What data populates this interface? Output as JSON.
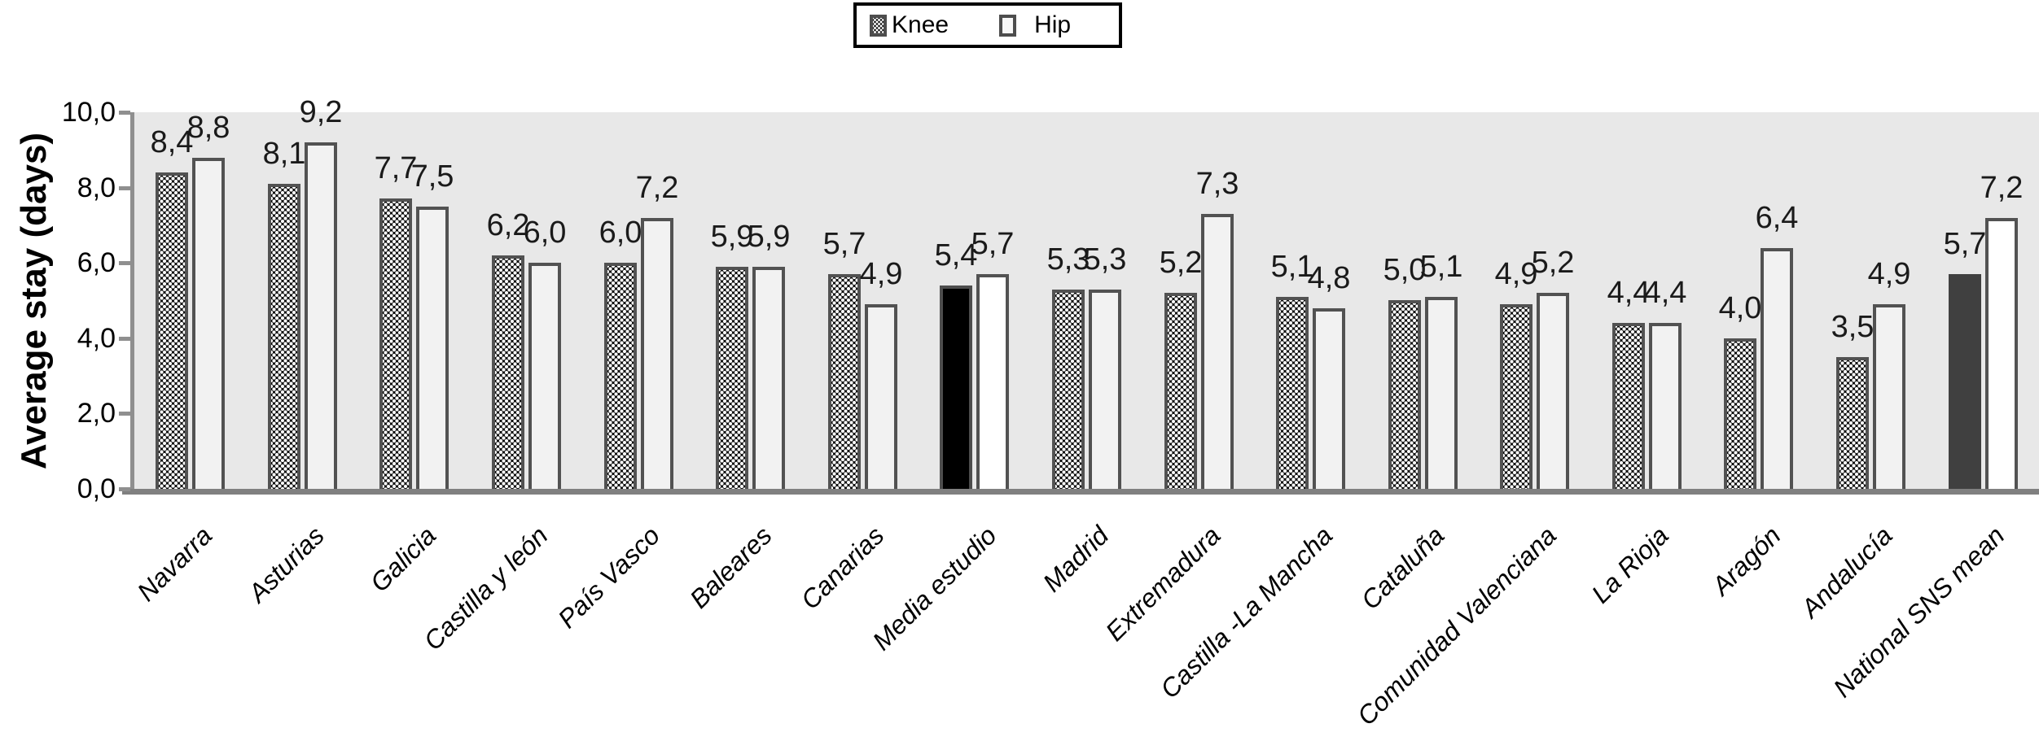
{
  "legend": {
    "items": [
      {
        "label": "Knee"
      },
      {
        "label": "Hip"
      }
    ]
  },
  "colors": {
    "plot_bg": "#e8e8e8",
    "axis": "#8f8f8f",
    "knee_fill": "#0d0d0d",
    "knee_dot": "#ffffff",
    "knee_border": "#4d4d4d",
    "hip_fill": "#f2f2f2",
    "hip_border": "#525252",
    "media_estudio_knee_fill": "#000000",
    "national_sns_knee_fill": "#404040"
  },
  "chart_data": {
    "type": "bar",
    "title": "",
    "xlabel": "",
    "ylabel": "Average stay (days)",
    "ylim": [
      0,
      10
    ],
    "grid": false,
    "legend_position": "top-center",
    "decimal_separator": ",",
    "yticks": [
      {
        "value": 10,
        "label": "10,0"
      },
      {
        "value": 8,
        "label": "8,0"
      },
      {
        "value": 6,
        "label": "6,0"
      },
      {
        "value": 4,
        "label": "4,0"
      },
      {
        "value": 2,
        "label": "2,0"
      },
      {
        "value": 0,
        "label": "0,0"
      }
    ],
    "categories": [
      "Navarra",
      "Asturias",
      "Galicia",
      "Castilla y león",
      "País Vasco",
      "Baleares",
      "Canarias",
      "Media estudio",
      "Madrid",
      "Extremadura",
      "Castilla -La Mancha",
      "Cataluña",
      "Comunidad Valenciana",
      "La Rioja",
      "Aragón",
      "Andalucía",
      "National SNS mean"
    ],
    "series": [
      {
        "name": "Knee",
        "values": [
          8.4,
          8.1,
          7.7,
          6.2,
          6.0,
          5.9,
          5.7,
          5.4,
          5.3,
          5.2,
          5.1,
          5.0,
          4.9,
          4.4,
          4.0,
          3.5,
          5.7
        ]
      },
      {
        "name": "Hip",
        "values": [
          8.8,
          9.2,
          7.5,
          6.0,
          7.2,
          5.9,
          4.9,
          5.7,
          5.3,
          7.3,
          4.8,
          5.1,
          5.2,
          4.4,
          6.4,
          4.9,
          7.2
        ]
      }
    ],
    "bar_style_overrides": [
      {
        "category": "Media estudio",
        "series": "Knee",
        "fill": "#000000",
        "pattern": false,
        "border": "#4d4d4d"
      },
      {
        "category": "National SNS mean",
        "series": "Knee",
        "fill": "#404040",
        "pattern": false,
        "border": "#404040"
      },
      {
        "category": "Media estudio",
        "series": "Hip",
        "fill": "#ffffff",
        "pattern": false,
        "border": "#525252"
      },
      {
        "category": "National SNS mean",
        "series": "Hip",
        "fill": "#ffffff",
        "pattern": false,
        "border": "#525252"
      }
    ]
  }
}
